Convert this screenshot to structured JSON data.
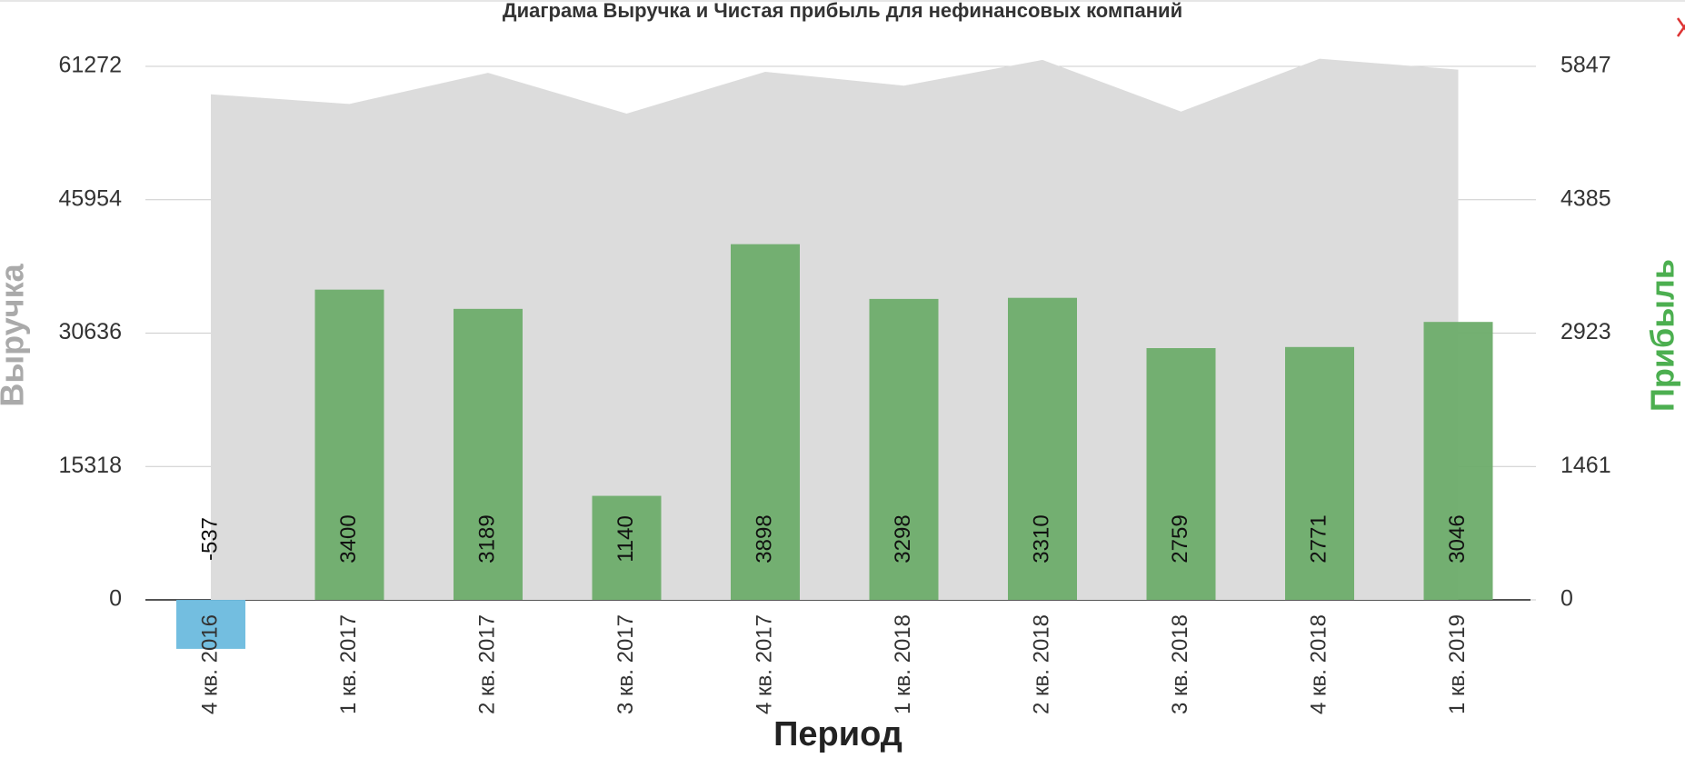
{
  "chart_data": {
    "type": "area-bar",
    "title": "Диаграма Выручка и Чистая прибыль для нефинансовых компаний",
    "x_label": "Период",
    "y_label": "Выручка",
    "y2_label": "Прибыль",
    "categories": [
      "4 кв. 2016",
      "1 кв. 2017",
      "2 кв. 2017",
      "3 кв. 2017",
      "4 кв. 2017",
      "1 кв. 2018",
      "2 кв. 2018",
      "3 кв. 2018",
      "4 кв. 2018",
      "1 кв. 2019"
    ],
    "series": [
      {
        "name": "Выручка",
        "type": "area",
        "color": "#dcdcdc",
        "values": [
          58060,
          56950,
          60530,
          55840,
          60650,
          59050,
          62010,
          56080,
          62140,
          60900
        ]
      },
      {
        "name": "Прибыль",
        "type": "bar",
        "axis": "y2",
        "color": "#6dac6a",
        "negative_color": "#6bbade",
        "values": [
          -537,
          3400,
          3189,
          1140,
          3898,
          3298,
          3310,
          2759,
          2771,
          3046
        ]
      }
    ],
    "ylim": [
      0,
      61272
    ],
    "yticks": [
      0,
      15318,
      30636,
      45954,
      61272
    ],
    "y2lim": [
      0,
      5847
    ],
    "y2ticks": [
      0,
      1461,
      2923,
      4385,
      5847
    ],
    "grid": true
  }
}
